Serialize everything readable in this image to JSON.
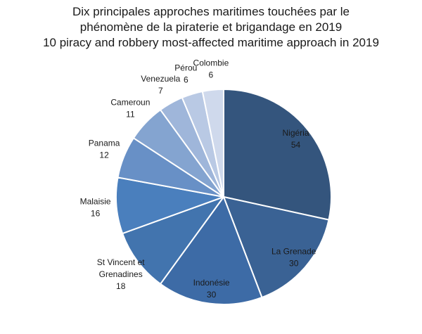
{
  "chart_data": {
    "type": "pie",
    "title": "Dix principales approches maritimes touchées par le phénomène de la piraterie et brigandage en 2019",
    "title_lines": [
      "Dix principales approches maritimes touchées par le",
      "phénomène de la piraterie et brigandage en 2019",
      "10 piracy and robbery most-affected maritime approach in 2019"
    ],
    "start": "12 o'clock",
    "direction": "clockwise",
    "legend": "none",
    "slices": [
      {
        "label": "Nigéria",
        "label_lines": [
          "Nigéria"
        ],
        "value": 54,
        "color": "#34557d"
      },
      {
        "label": "La Grenade",
        "label_lines": [
          "La Grenade"
        ],
        "value": 30,
        "color": "#3a6294"
      },
      {
        "label": "Indonésie",
        "label_lines": [
          "Indonésie"
        ],
        "value": 30,
        "color": "#3d6ba6"
      },
      {
        "label": "St Vincent et Grenadines",
        "label_lines": [
          "St Vincent et",
          "Grenadines"
        ],
        "value": 18,
        "color": "#4274ae"
      },
      {
        "label": "Malaisie",
        "label_lines": [
          "Malaisie"
        ],
        "value": 16,
        "color": "#4a7fbd"
      },
      {
        "label": "Panama",
        "label_lines": [
          "Panama"
        ],
        "value": 12,
        "color": "#6890c6"
      },
      {
        "label": "Cameroun",
        "label_lines": [
          "Cameroun"
        ],
        "value": 11,
        "color": "#84a4d0"
      },
      {
        "label": "Venezuela",
        "label_lines": [
          "Venezuela"
        ],
        "value": 7,
        "color": "#9fb6da"
      },
      {
        "label": "Pérou",
        "label_lines": [
          "Pérou"
        ],
        "value": 6,
        "color": "#b9c9e4"
      },
      {
        "label": "Colombie",
        "label_lines": [
          "Colombie"
        ],
        "value": 6,
        "color": "#cfd9ec"
      }
    ]
  }
}
